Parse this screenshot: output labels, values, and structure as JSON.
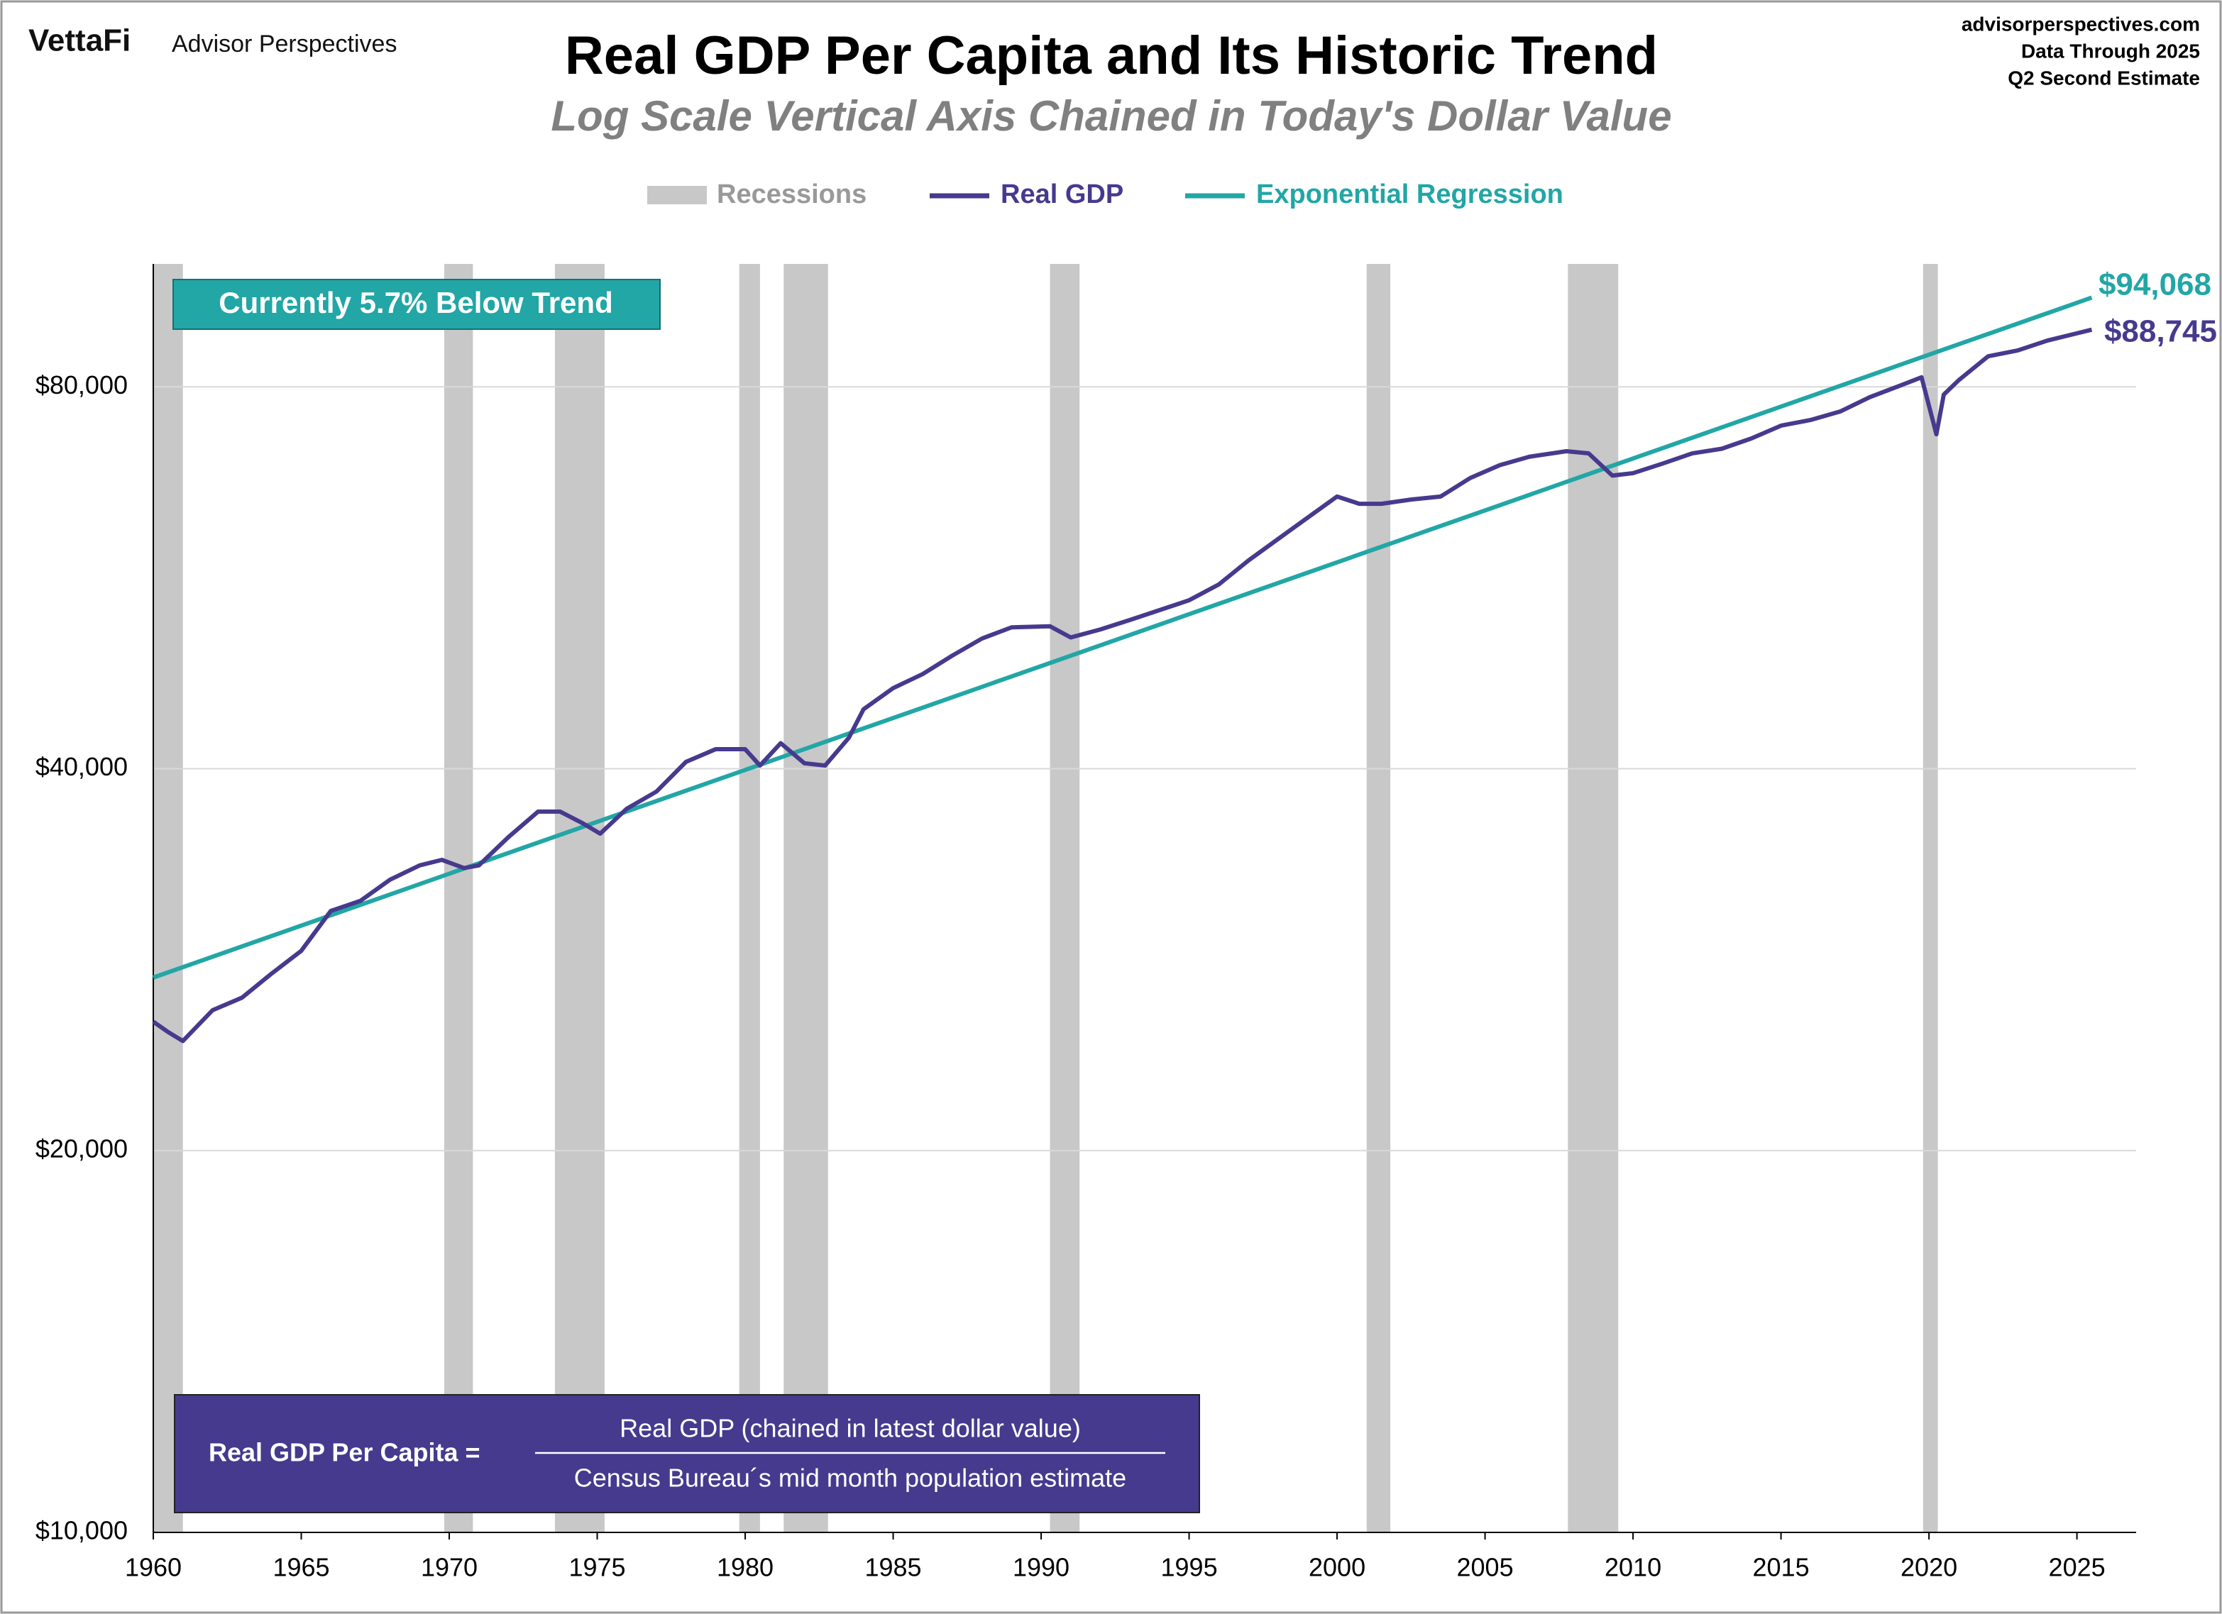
{
  "header": {
    "brand": "VettaFi",
    "brand_sub": "Advisor Perspectives",
    "source": [
      "advisorperspectives.com",
      "Data Through 2025",
      "Q2 Second Estimate"
    ]
  },
  "chart_data": {
    "type": "line",
    "title": "Real GDP Per Capita and Its Historic Trend",
    "subtitle": "Log Scale Vertical Axis Chained in Today's Dollar Value",
    "log_scale": true,
    "grid": true,
    "xlim": [
      1960,
      2027
    ],
    "xticks": [
      1960,
      1965,
      1970,
      1975,
      1980,
      1985,
      1990,
      1995,
      2000,
      2005,
      2010,
      2015,
      2020,
      2025
    ],
    "ylim": [
      10000,
      100000
    ],
    "yticks": [
      {
        "value": 10000,
        "label": "$10,000"
      },
      {
        "value": 20000,
        "label": "$20,000"
      },
      {
        "value": 40000,
        "label": "$40,000"
      },
      {
        "value": 80000,
        "label": "$80,000"
      }
    ],
    "recessions": {
      "name": "Recessions",
      "color": "#c8c8c8",
      "ranges": [
        [
          1960.0,
          1961.0
        ],
        [
          1969.83,
          1970.8
        ],
        [
          1973.57,
          1975.25
        ],
        [
          1979.8,
          1980.5
        ],
        [
          1981.3,
          1982.8
        ],
        [
          1990.3,
          1991.3
        ],
        [
          2001.0,
          2001.8
        ],
        [
          2007.8,
          2009.5
        ],
        [
          2019.8,
          2020.3
        ]
      ]
    },
    "series": [
      {
        "name": "Real GDP",
        "color": "#463a8e",
        "x": [
          1960.0,
          1960.5,
          1961.0,
          1962,
          1963,
          1964,
          1965,
          1966,
          1967,
          1968,
          1969,
          1969.75,
          1970.5,
          1971,
          1972,
          1973,
          1973.75,
          1974.5,
          1975.1,
          1976,
          1977,
          1978,
          1979,
          1980.0,
          1980.5,
          1981.2,
          1982,
          1982.7,
          1983.5,
          1984,
          1985,
          1986,
          1987,
          1988,
          1989,
          1990.3,
          1991.0,
          1992,
          1993,
          1994,
          1995,
          1996,
          1997,
          1998,
          1999,
          2000,
          2000.75,
          2001.5,
          2002.5,
          2003.5,
          2004.5,
          2005.5,
          2006.5,
          2007.75,
          2008.5,
          2009.3,
          2010,
          2011,
          2012,
          2013,
          2014,
          2015,
          2016,
          2017,
          2018,
          2019,
          2019.75,
          2020.25,
          2020.5,
          2021,
          2022,
          2023,
          2024,
          2025.5
        ],
        "values": [
          25270,
          24800,
          24400,
          25800,
          26400,
          27580,
          28740,
          30900,
          31470,
          32700,
          33560,
          33900,
          33400,
          33560,
          35330,
          37000,
          37000,
          36240,
          35550,
          37200,
          38370,
          40500,
          41440,
          41440,
          40230,
          41900,
          40400,
          40230,
          42300,
          44560,
          46300,
          47500,
          49120,
          50660,
          51700,
          51800,
          50760,
          51500,
          52400,
          53340,
          54310,
          55880,
          58360,
          60680,
          63080,
          65560,
          64700,
          64700,
          65200,
          65560,
          67800,
          69400,
          70470,
          71180,
          70900,
          68100,
          68400,
          69600,
          70900,
          71500,
          72850,
          74560,
          75330,
          76500,
          78520,
          80140,
          81400,
          73400,
          78880,
          80950,
          84570,
          85470,
          87010,
          88745
        ],
        "end_label": "$88,745"
      },
      {
        "name": "Exponential Regression",
        "color": "#22a6a6",
        "x": [
          1960,
          2025.5
        ],
        "values": [
          27380,
          94068
        ],
        "end_label": "$94,068"
      }
    ],
    "annotations": {
      "trend_note": "Currently 5.7% Below Trend",
      "formula_lhs": "Real GDP Per Capita =",
      "formula_num": "Real GDP (chained in latest dollar value)",
      "formula_den": "Census Bureau´s mid month population estimate"
    }
  }
}
